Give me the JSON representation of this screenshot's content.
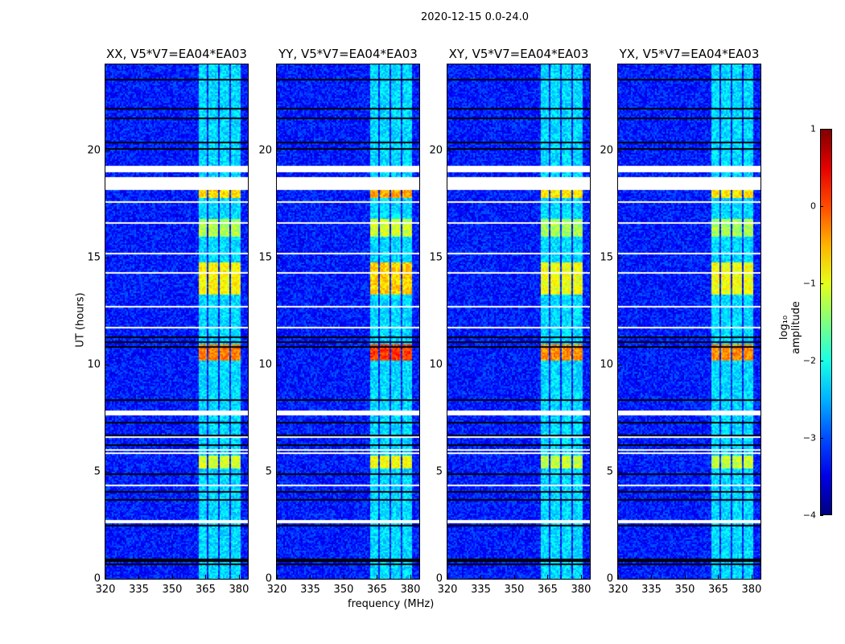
{
  "chart_data": {
    "type": "heatmap",
    "suptitle": "2020-12-15 0.0-24.0",
    "xlabel": "frequency (MHz)",
    "ylabel": "UT (hours)",
    "xlim": [
      320,
      384
    ],
    "ylim": [
      0,
      24
    ],
    "xticks": [
      "320",
      "335",
      "350",
      "365",
      "380"
    ],
    "yticks": [
      "0",
      "5",
      "10",
      "15",
      "20"
    ],
    "panels": [
      {
        "title": "XX, V5*V7=EA04*EA03",
        "band_gain": 1.0
      },
      {
        "title": "YY, V5*V7=EA04*EA03",
        "band_gain": 1.15
      },
      {
        "title": "XY, V5*V7=EA04*EA03",
        "band_gain": 0.95
      },
      {
        "title": "YX, V5*V7=EA04*EA03",
        "band_gain": 0.95
      }
    ],
    "rfi_subbands_mhz": [
      [
        361.5,
        365.3
      ],
      [
        366.2,
        370.3
      ],
      [
        371.2,
        375.3
      ],
      [
        376.2,
        380.3
      ]
    ],
    "flagged_hours": [
      [
        19.0,
        19.3
      ],
      [
        18.2,
        18.8
      ],
      [
        12.7,
        12.8
      ],
      [
        11.75,
        11.8
      ],
      [
        7.65,
        7.85
      ],
      [
        7.4,
        7.45
      ],
      [
        6.6,
        6.65
      ],
      [
        6.0,
        6.05
      ],
      [
        5.85,
        5.9
      ],
      [
        4.35,
        4.4
      ],
      [
        3.35,
        3.4
      ],
      [
        2.6,
        2.75
      ],
      [
        17.6,
        17.65
      ],
      [
        16.6,
        16.65
      ],
      [
        15.2,
        15.25
      ],
      [
        14.3,
        14.35
      ],
      [
        22.5,
        22.55
      ]
    ],
    "dark_hours": [
      23.3,
      22.0,
      21.5,
      20.4,
      20.1,
      11.3,
      11.1,
      10.85,
      8.4,
      7.3,
      6.75,
      6.3,
      4.9,
      4.1,
      3.7,
      2.5,
      0.9,
      0.7
    ],
    "bright_hours": [
      [
        10.2,
        11.0,
        2.6
      ],
      [
        13.3,
        14.8,
        1.8
      ],
      [
        17.8,
        18.2,
        2.0
      ],
      [
        5.2,
        5.8,
        1.5
      ],
      [
        16.0,
        16.8,
        1.3
      ]
    ],
    "colorbar": {
      "label": "log₁₀ amplitude",
      "range": [
        -4,
        1
      ],
      "ticks": [
        "1",
        "0",
        "−1",
        "−2",
        "−3",
        "−4"
      ],
      "colormap": "jet"
    }
  }
}
